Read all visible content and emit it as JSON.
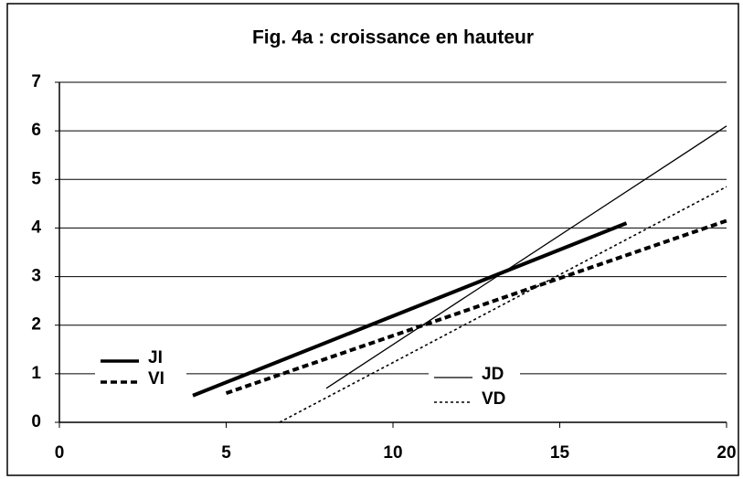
{
  "chart_data": {
    "type": "line",
    "title": "Fig. 4a : croissance en hauteur",
    "xlim": [
      0,
      20
    ],
    "xticks": [
      0,
      5,
      10,
      15,
      20
    ],
    "ylim": [
      0,
      7
    ],
    "yticks": [
      0,
      1,
      2,
      3,
      4,
      5,
      6,
      7
    ],
    "grid": true,
    "series": [
      {
        "name": "JI",
        "color": "#000000",
        "style": "solid",
        "width": 4,
        "x": [
          4,
          17
        ],
        "values": [
          0.55,
          4.1
        ]
      },
      {
        "name": "VI",
        "color": "#000000",
        "style": "dashed",
        "width": 4,
        "x": [
          5,
          20
        ],
        "values": [
          0.6,
          4.15
        ]
      },
      {
        "name": "JD",
        "color": "#000000",
        "style": "solid",
        "width": 1.3,
        "x": [
          8,
          20
        ],
        "values": [
          0.7,
          6.1
        ]
      },
      {
        "name": "VD",
        "color": "#000000",
        "style": "dotted",
        "width": 1.6,
        "x": [
          6.6,
          20
        ],
        "values": [
          0,
          4.85
        ]
      }
    ]
  }
}
